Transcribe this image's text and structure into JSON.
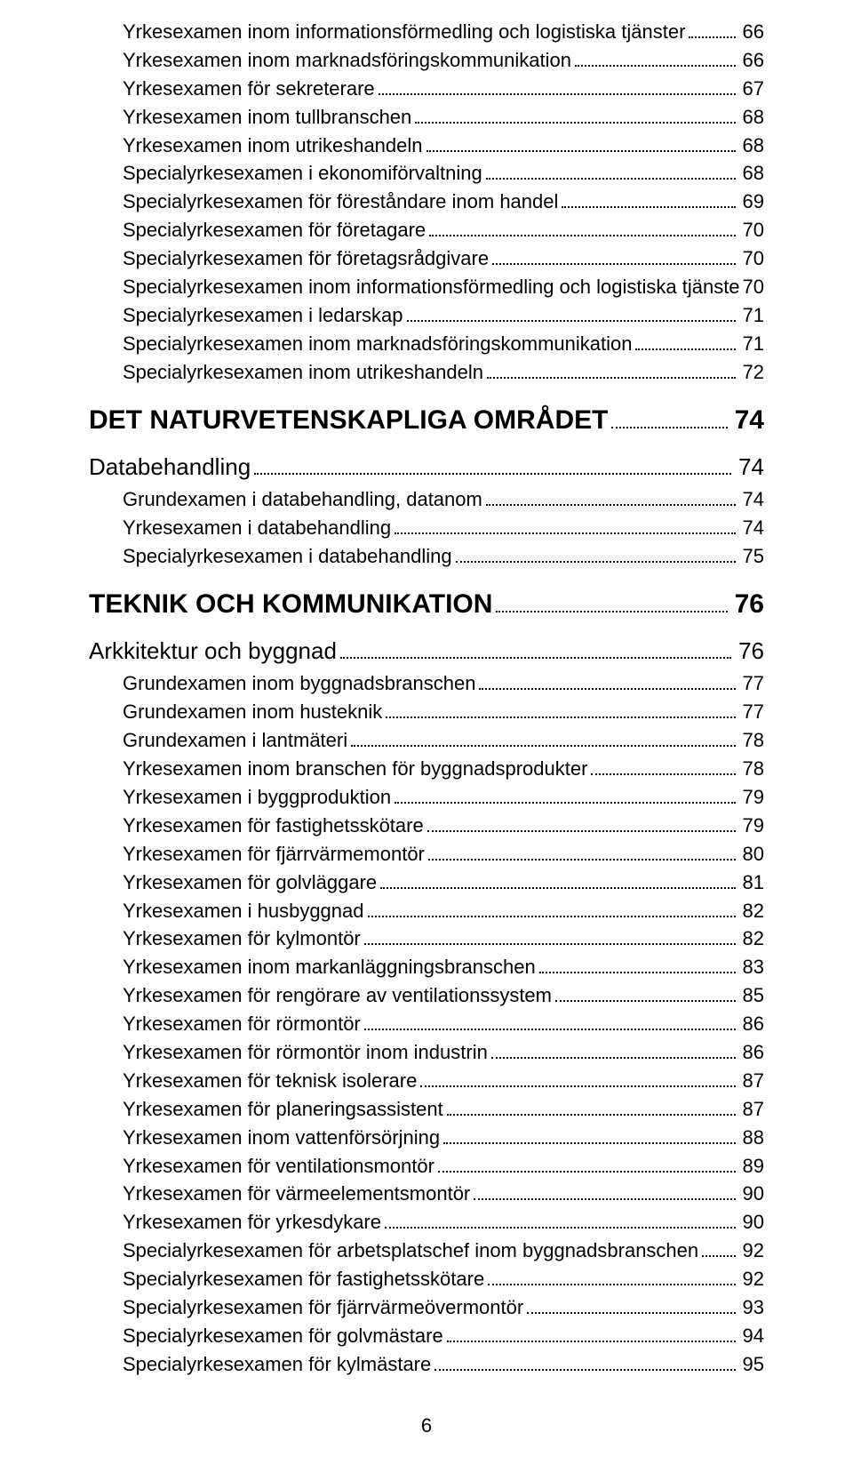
{
  "pageNumber": "6",
  "entries": [
    {
      "level": "entry",
      "label": "Yrkesexamen inom informationsförmedling och logistiska tjänster",
      "page": "66",
      "dots": true
    },
    {
      "level": "entry",
      "label": "Yrkesexamen inom marknadsföringskommunikation",
      "page": "66",
      "dots": true
    },
    {
      "level": "entry",
      "label": "Yrkesexamen för sekreterare",
      "page": "67",
      "dots": true
    },
    {
      "level": "entry",
      "label": "Yrkesexamen inom tullbranschen",
      "page": "68",
      "dots": true
    },
    {
      "level": "entry",
      "label": "Yrkesexamen inom utrikeshandeln",
      "page": "68",
      "dots": true
    },
    {
      "level": "entry",
      "label": "Specialyrkesexamen i ekonomiförvaltning",
      "page": "68",
      "dots": true
    },
    {
      "level": "entry",
      "label": "Specialyrkesexamen för föreståndare inom handel",
      "page": "69",
      "dots": true
    },
    {
      "level": "entry",
      "label": "Specialyrkesexamen för företagare",
      "page": "70",
      "dots": true
    },
    {
      "level": "entry",
      "label": "Specialyrkesexamen för företagsrådgivare",
      "page": "70",
      "dots": true
    },
    {
      "level": "entry",
      "label": "Specialyrkesexamen inom informationsförmedling och logistiska tjänster..",
      "page": "70",
      "dots": false
    },
    {
      "level": "entry",
      "label": "Specialyrkesexamen i ledarskap",
      "page": "71",
      "dots": true
    },
    {
      "level": "entry",
      "label": "Specialyrkesexamen inom marknadsföringskommunikation",
      "page": "71",
      "dots": true
    },
    {
      "level": "entry",
      "label": "Specialyrkesexamen inom utrikeshandeln",
      "page": "72",
      "dots": true
    },
    {
      "level": "heading",
      "label": "DET NATURVETENSKAPLIGA OMRÅDET",
      "page": "74",
      "dots": true
    },
    {
      "level": "sub",
      "label": "Databehandling",
      "page": "74",
      "dots": true
    },
    {
      "level": "entry",
      "label": "Grundexamen i databehandling, datanom",
      "page": "74",
      "dots": true
    },
    {
      "level": "entry",
      "label": "Yrkesexamen i databehandling",
      "page": "74",
      "dots": true
    },
    {
      "level": "entry",
      "label": "Specialyrkesexamen i databehandling",
      "page": "75",
      "dots": true
    },
    {
      "level": "heading",
      "label": "TEKNIK OCH KOMMUNIKATION",
      "page": "76",
      "dots": true
    },
    {
      "level": "sub",
      "label": "Arkkitektur och byggnad",
      "page": "76",
      "dots": true
    },
    {
      "level": "entry",
      "label": "Grundexamen inom byggnadsbranschen",
      "page": "77",
      "dots": true
    },
    {
      "level": "entry",
      "label": "Grundexamen inom husteknik",
      "page": "77",
      "dots": true
    },
    {
      "level": "entry",
      "label": "Grundexamen i lantmäteri",
      "page": "78",
      "dots": true
    },
    {
      "level": "entry",
      "label": "Yrkesexamen inom branschen för byggnadsprodukter",
      "page": "78",
      "dots": true
    },
    {
      "level": "entry",
      "label": "Yrkesexamen i byggproduktion",
      "page": "79",
      "dots": true
    },
    {
      "level": "entry",
      "label": "Yrkesexamen för fastighetsskötare",
      "page": "79",
      "dots": true
    },
    {
      "level": "entry",
      "label": "Yrkesexamen för fjärrvärmemontör",
      "page": "80",
      "dots": true
    },
    {
      "level": "entry",
      "label": "Yrkesexamen för golvläggare",
      "page": "81",
      "dots": true
    },
    {
      "level": "entry",
      "label": "Yrkesexamen i husbyggnad",
      "page": "82",
      "dots": true
    },
    {
      "level": "entry",
      "label": "Yrkesexamen för kylmontör",
      "page": "82",
      "dots": true
    },
    {
      "level": "entry",
      "label": "Yrkesexamen inom markanläggningsbranschen",
      "page": "83",
      "dots": true
    },
    {
      "level": "entry",
      "label": "Yrkesexamen för rengörare av ventilationssystem",
      "page": "85",
      "dots": true
    },
    {
      "level": "entry",
      "label": "Yrkesexamen för rörmontör",
      "page": "86",
      "dots": true
    },
    {
      "level": "entry",
      "label": "Yrkesexamen för rörmontör inom industrin",
      "page": "86",
      "dots": true
    },
    {
      "level": "entry",
      "label": "Yrkesexamen för teknisk isolerare",
      "page": "87",
      "dots": true
    },
    {
      "level": "entry",
      "label": "Yrkesexamen för planeringsassistent",
      "page": "87",
      "dots": true
    },
    {
      "level": "entry",
      "label": "Yrkesexamen inom vattenförsörjning",
      "page": "88",
      "dots": true
    },
    {
      "level": "entry",
      "label": "Yrkesexamen för ventilationsmontör",
      "page": "89",
      "dots": true
    },
    {
      "level": "entry",
      "label": "Yrkesexamen för värmeelementsmontör",
      "page": "90",
      "dots": true
    },
    {
      "level": "entry",
      "label": "Yrkesexamen för yrkesdykare",
      "page": "90",
      "dots": true
    },
    {
      "level": "entry",
      "label": "Specialyrkesexamen för arbetsplatschef inom byggnadsbranschen",
      "page": "92",
      "dots": true
    },
    {
      "level": "entry",
      "label": "Specialyrkesexamen för fastighetsskötare",
      "page": "92",
      "dots": true
    },
    {
      "level": "entry",
      "label": "Specialyrkesexamen för fjärrvärmeövermontör",
      "page": "93",
      "dots": true
    },
    {
      "level": "entry",
      "label": "Specialyrkesexamen för golvmästare",
      "page": "94",
      "dots": true
    },
    {
      "level": "entry",
      "label": "Specialyrkesexamen för kylmästare",
      "page": "95",
      "dots": true
    }
  ]
}
